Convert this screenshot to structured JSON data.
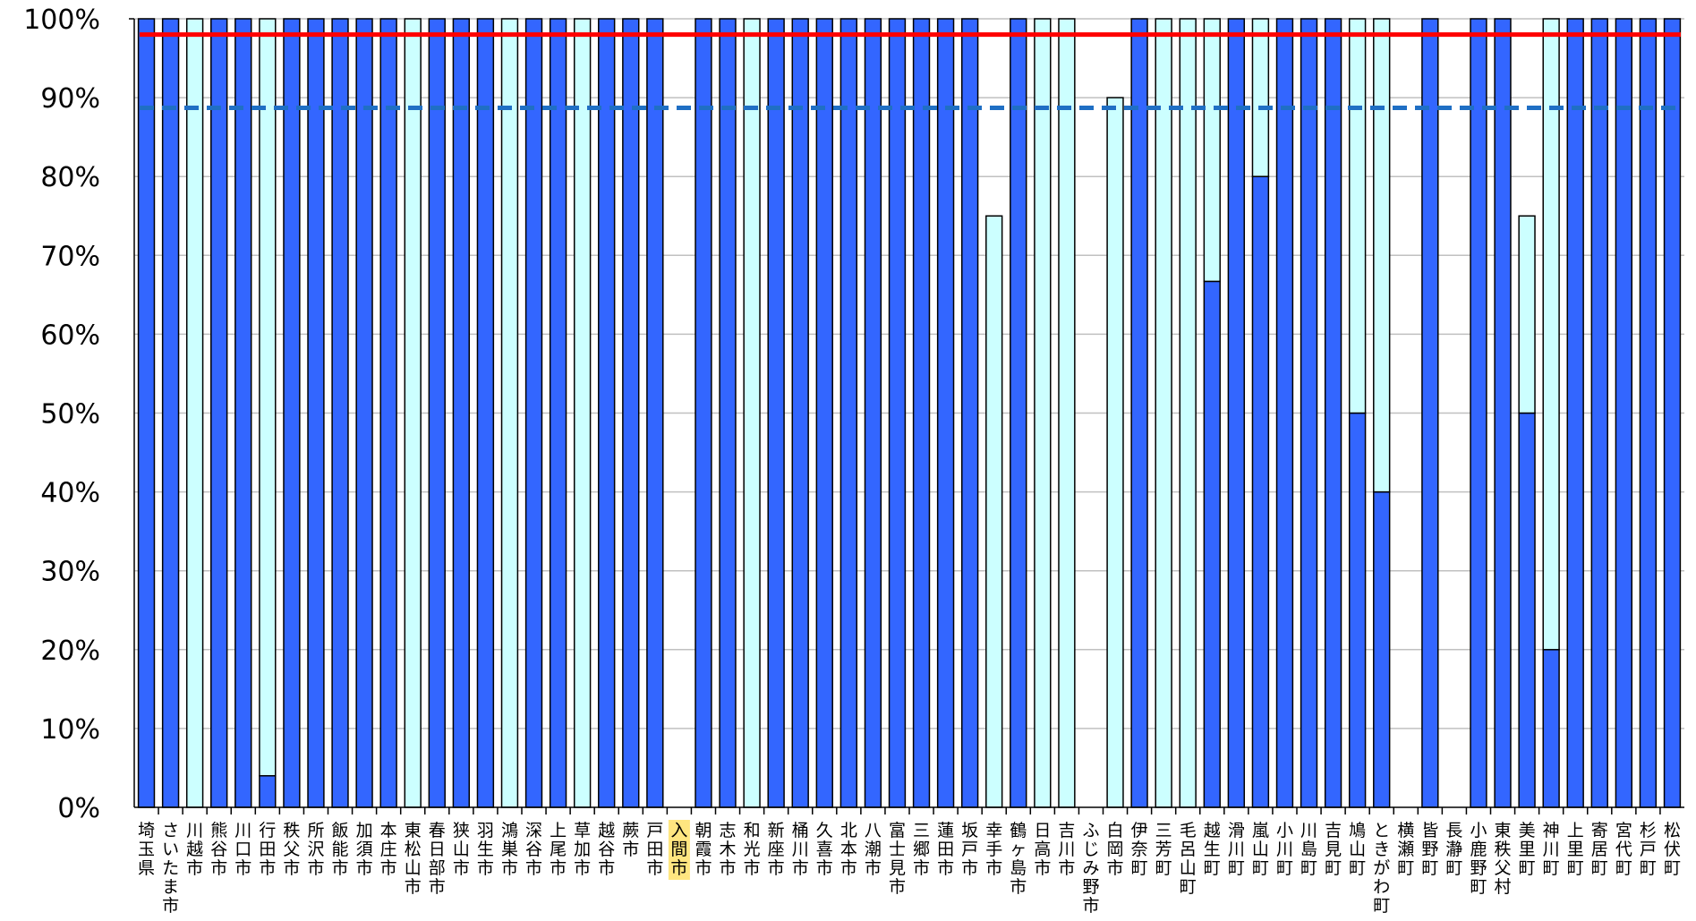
{
  "chart_data": {
    "type": "bar",
    "stacked": true,
    "ylim": [
      0,
      100
    ],
    "y_ticks": [
      "0%",
      "10%",
      "20%",
      "30%",
      "40%",
      "50%",
      "60%",
      "70%",
      "80%",
      "90%",
      "100%"
    ],
    "grid": true,
    "highlighted_category": "入間市",
    "categories": [
      "埼玉県",
      "さいたま市",
      "川越市",
      "熊谷市",
      "川口市",
      "行田市",
      "秩父市",
      "所沢市",
      "飯能市",
      "加須市",
      "本庄市",
      "東松山市",
      "春日部市",
      "狭山市",
      "羽生市",
      "鴻巣市",
      "深谷市",
      "上尾市",
      "草加市",
      "越谷市",
      "蕨市",
      "戸田市",
      "入間市",
      "朝霞市",
      "志木市",
      "和光市",
      "新座市",
      "桶川市",
      "久喜市",
      "北本市",
      "八潮市",
      "富士見市",
      "三郷市",
      "蓮田市",
      "坂戸市",
      "幸手市",
      "鶴ヶ島市",
      "日高市",
      "吉川市",
      "ふじみ野市",
      "白岡市",
      "伊奈町",
      "三芳町",
      "毛呂山町",
      "越生町",
      "滑川町",
      "嵐山町",
      "小川町",
      "川島町",
      "吉見町",
      "鳩山町",
      "ときがわ町",
      "横瀬町",
      "皆野町",
      "長瀞町",
      "小鹿野町",
      "東秩父村",
      "美里町",
      "神川町",
      "上里町",
      "寄居町",
      "宮代町",
      "杉戸町",
      "松伏町"
    ],
    "series": [
      {
        "values": [
          100,
          100,
          0,
          100,
          100,
          4,
          100,
          100,
          100,
          100,
          100,
          0,
          100,
          100,
          100,
          0,
          100,
          100,
          0,
          100,
          100,
          100,
          0,
          100,
          100,
          0,
          100,
          100,
          100,
          100,
          100,
          100,
          100,
          100,
          100,
          0,
          100,
          0,
          0,
          0,
          0,
          100,
          0,
          0,
          66.7,
          100,
          80,
          100,
          100,
          100,
          50,
          40,
          0,
          100,
          0,
          100,
          100,
          50,
          20,
          100,
          100,
          100,
          100,
          100
        ]
      },
      {
        "values": [
          0,
          0,
          100,
          0,
          0,
          96,
          0,
          0,
          0,
          0,
          0,
          100,
          0,
          0,
          0,
          100,
          0,
          0,
          100,
          0,
          0,
          0,
          0,
          0,
          0,
          100,
          0,
          0,
          0,
          0,
          0,
          0,
          0,
          0,
          0,
          75,
          0,
          100,
          100,
          0,
          90,
          0,
          100,
          100,
          33.3,
          0,
          20,
          0,
          0,
          0,
          50,
          60,
          0,
          0,
          0,
          0,
          0,
          25,
          80,
          0,
          0,
          0,
          0,
          0
        ]
      }
    ],
    "reference_lines": [
      {
        "value": 98,
        "style": "solid",
        "color": "#ff0000"
      },
      {
        "value": 88.7,
        "style": "dashed",
        "color": "#1f6fc4"
      }
    ],
    "colors": {
      "series1_fill": "#3366ff",
      "series2_fill": "#ccffff",
      "highlight_label_bg": "#ffe680",
      "grid": "#c0c0c0",
      "axis": "#000000"
    }
  }
}
